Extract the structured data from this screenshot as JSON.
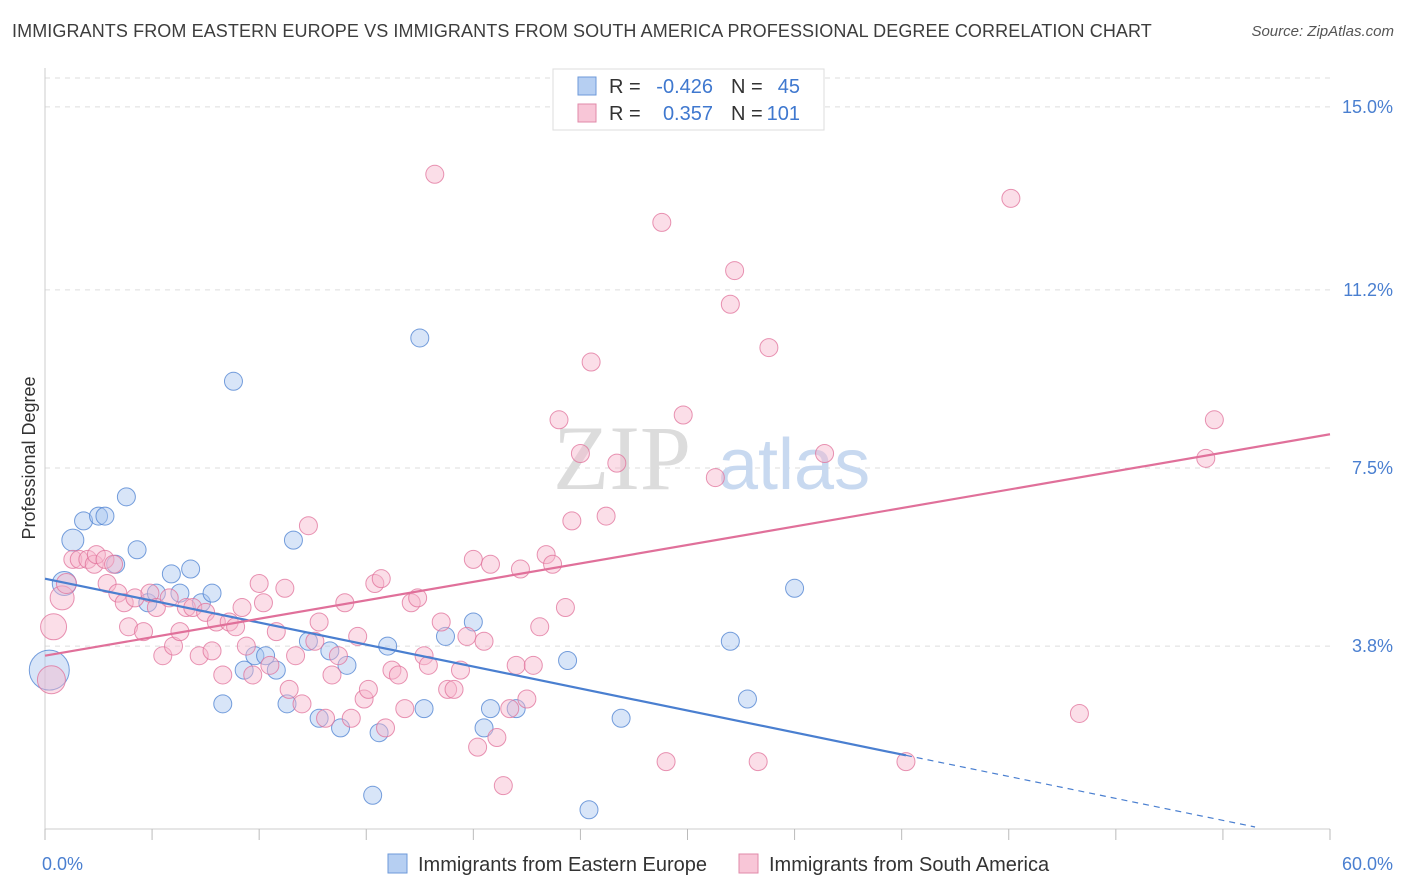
{
  "title": "IMMIGRANTS FROM EASTERN EUROPE VS IMMIGRANTS FROM SOUTH AMERICA PROFESSIONAL DEGREE CORRELATION CHART",
  "source": "Source: ZipAtlas.com",
  "watermark": {
    "zip": "ZIP",
    "atlas": "atlas"
  },
  "chart_data": {
    "type": "scatter",
    "title": "IMMIGRANTS FROM EASTERN EUROPE VS IMMIGRANTS FROM SOUTH AMERICA PROFESSIONAL DEGREE CORRELATION CHART",
    "xlabel": "",
    "ylabel": "Professional Degree",
    "xlim": [
      0,
      60
    ],
    "ylim": [
      0,
      15.6
    ],
    "x_tick_labels": [
      "0.0%",
      "60.0%"
    ],
    "y_ticks": [
      3.8,
      7.5,
      11.2,
      15.0
    ],
    "y_tick_labels": [
      "3.8%",
      "7.5%",
      "11.2%",
      "15.0%"
    ],
    "legend": {
      "r_label": "R =",
      "n_label": "N =",
      "entries": [
        {
          "r": "-0.426",
          "n": "45"
        },
        {
          "r": "0.357",
          "n": "101"
        }
      ]
    },
    "series": [
      {
        "name": "Immigrants from Eastern Europe",
        "color": "#4a7fd0",
        "fill": "#a9c6f0",
        "r": -0.426,
        "n": 45,
        "trend": {
          "x0": 0,
          "y0": 5.2,
          "x1": 40.2,
          "y1": 1.53,
          "dash_to_x": 56.5
        },
        "points": [
          {
            "x": 0.2,
            "y": 3.3,
            "s": 20
          },
          {
            "x": 0.9,
            "y": 5.1,
            "s": 12
          },
          {
            "x": 1.3,
            "y": 6.0,
            "s": 11
          },
          {
            "x": 1.8,
            "y": 6.4,
            "s": 9
          },
          {
            "x": 2.5,
            "y": 6.5,
            "s": 9
          },
          {
            "x": 2.8,
            "y": 6.5,
            "s": 9
          },
          {
            "x": 3.3,
            "y": 5.5,
            "s": 9
          },
          {
            "x": 3.8,
            "y": 6.9,
            "s": 9
          },
          {
            "x": 4.3,
            "y": 5.8,
            "s": 9
          },
          {
            "x": 4.8,
            "y": 4.7,
            "s": 9
          },
          {
            "x": 5.2,
            "y": 4.9,
            "s": 9
          },
          {
            "x": 5.9,
            "y": 5.3,
            "s": 9
          },
          {
            "x": 6.3,
            "y": 4.9,
            "s": 9
          },
          {
            "x": 6.8,
            "y": 5.4,
            "s": 9
          },
          {
            "x": 7.3,
            "y": 4.7,
            "s": 9
          },
          {
            "x": 7.8,
            "y": 4.9,
            "s": 9
          },
          {
            "x": 8.3,
            "y": 2.6,
            "s": 9
          },
          {
            "x": 8.8,
            "y": 9.3,
            "s": 9
          },
          {
            "x": 9.3,
            "y": 3.3,
            "s": 9
          },
          {
            "x": 9.8,
            "y": 3.6,
            "s": 9
          },
          {
            "x": 10.3,
            "y": 3.6,
            "s": 9
          },
          {
            "x": 10.8,
            "y": 3.3,
            "s": 9
          },
          {
            "x": 11.3,
            "y": 2.6,
            "s": 9
          },
          {
            "x": 11.6,
            "y": 6.0,
            "s": 9
          },
          {
            "x": 12.3,
            "y": 3.9,
            "s": 9
          },
          {
            "x": 12.8,
            "y": 2.3,
            "s": 9
          },
          {
            "x": 13.3,
            "y": 3.7,
            "s": 9
          },
          {
            "x": 13.8,
            "y": 2.1,
            "s": 9
          },
          {
            "x": 14.1,
            "y": 3.4,
            "s": 9
          },
          {
            "x": 15.3,
            "y": 0.7,
            "s": 9
          },
          {
            "x": 15.6,
            "y": 2.0,
            "s": 9
          },
          {
            "x": 16.0,
            "y": 3.8,
            "s": 9
          },
          {
            "x": 17.5,
            "y": 10.2,
            "s": 9
          },
          {
            "x": 17.7,
            "y": 2.5,
            "s": 9
          },
          {
            "x": 18.7,
            "y": 4.0,
            "s": 9
          },
          {
            "x": 20.0,
            "y": 4.3,
            "s": 9
          },
          {
            "x": 20.5,
            "y": 2.1,
            "s": 9
          },
          {
            "x": 20.8,
            "y": 2.5,
            "s": 9
          },
          {
            "x": 22.0,
            "y": 2.5,
            "s": 9
          },
          {
            "x": 24.4,
            "y": 3.5,
            "s": 9
          },
          {
            "x": 25.4,
            "y": 0.4,
            "s": 9
          },
          {
            "x": 26.9,
            "y": 2.3,
            "s": 9
          },
          {
            "x": 32.0,
            "y": 3.9,
            "s": 9
          },
          {
            "x": 32.8,
            "y": 2.7,
            "s": 9
          },
          {
            "x": 35.0,
            "y": 5.0,
            "s": 9
          }
        ]
      },
      {
        "name": "Immigrants from South America",
        "color": "#e0709a",
        "fill": "#f6b6cc",
        "r": 0.357,
        "n": 101,
        "trend": {
          "x0": 0,
          "y0": 3.6,
          "x1": 60,
          "y1": 8.2
        },
        "points": [
          {
            "x": 0.3,
            "y": 3.1,
            "s": 14
          },
          {
            "x": 0.4,
            "y": 4.2,
            "s": 13
          },
          {
            "x": 0.8,
            "y": 4.8,
            "s": 12
          },
          {
            "x": 1.0,
            "y": 5.1,
            "s": 10
          },
          {
            "x": 1.3,
            "y": 5.6,
            "s": 9
          },
          {
            "x": 1.6,
            "y": 5.6,
            "s": 9
          },
          {
            "x": 2.0,
            "y": 5.6,
            "s": 9
          },
          {
            "x": 2.3,
            "y": 5.5,
            "s": 9
          },
          {
            "x": 2.4,
            "y": 5.7,
            "s": 9
          },
          {
            "x": 2.8,
            "y": 5.6,
            "s": 9
          },
          {
            "x": 2.9,
            "y": 5.1,
            "s": 9
          },
          {
            "x": 3.2,
            "y": 5.5,
            "s": 9
          },
          {
            "x": 3.4,
            "y": 4.9,
            "s": 9
          },
          {
            "x": 3.7,
            "y": 4.7,
            "s": 9
          },
          {
            "x": 3.9,
            "y": 4.2,
            "s": 9
          },
          {
            "x": 4.2,
            "y": 4.8,
            "s": 9
          },
          {
            "x": 4.6,
            "y": 4.1,
            "s": 9
          },
          {
            "x": 4.9,
            "y": 4.9,
            "s": 9
          },
          {
            "x": 5.2,
            "y": 4.6,
            "s": 9
          },
          {
            "x": 5.5,
            "y": 3.6,
            "s": 9
          },
          {
            "x": 5.8,
            "y": 4.8,
            "s": 9
          },
          {
            "x": 6.0,
            "y": 3.8,
            "s": 9
          },
          {
            "x": 6.3,
            "y": 4.1,
            "s": 9
          },
          {
            "x": 6.6,
            "y": 4.6,
            "s": 9
          },
          {
            "x": 6.9,
            "y": 4.6,
            "s": 9
          },
          {
            "x": 7.2,
            "y": 3.6,
            "s": 9
          },
          {
            "x": 7.5,
            "y": 4.5,
            "s": 9
          },
          {
            "x": 7.8,
            "y": 3.7,
            "s": 9
          },
          {
            "x": 8.0,
            "y": 4.3,
            "s": 9
          },
          {
            "x": 8.3,
            "y": 3.2,
            "s": 9
          },
          {
            "x": 8.6,
            "y": 4.3,
            "s": 9
          },
          {
            "x": 8.9,
            "y": 4.2,
            "s": 9
          },
          {
            "x": 9.2,
            "y": 4.6,
            "s": 9
          },
          {
            "x": 9.4,
            "y": 3.8,
            "s": 9
          },
          {
            "x": 9.7,
            "y": 3.2,
            "s": 9
          },
          {
            "x": 10.0,
            "y": 5.1,
            "s": 9
          },
          {
            "x": 10.2,
            "y": 4.7,
            "s": 9
          },
          {
            "x": 10.5,
            "y": 3.4,
            "s": 9
          },
          {
            "x": 10.8,
            "y": 4.1,
            "s": 9
          },
          {
            "x": 11.2,
            "y": 5.0,
            "s": 9
          },
          {
            "x": 11.4,
            "y": 2.9,
            "s": 9
          },
          {
            "x": 11.7,
            "y": 3.6,
            "s": 9
          },
          {
            "x": 12.0,
            "y": 2.6,
            "s": 9
          },
          {
            "x": 12.3,
            "y": 6.3,
            "s": 9
          },
          {
            "x": 12.6,
            "y": 3.9,
            "s": 9
          },
          {
            "x": 12.8,
            "y": 4.3,
            "s": 9
          },
          {
            "x": 13.1,
            "y": 2.3,
            "s": 9
          },
          {
            "x": 13.4,
            "y": 3.2,
            "s": 9
          },
          {
            "x": 13.7,
            "y": 3.6,
            "s": 9
          },
          {
            "x": 14.0,
            "y": 4.7,
            "s": 9
          },
          {
            "x": 14.3,
            "y": 2.3,
            "s": 9
          },
          {
            "x": 14.6,
            "y": 4.0,
            "s": 9
          },
          {
            "x": 14.9,
            "y": 2.7,
            "s": 9
          },
          {
            "x": 15.1,
            "y": 2.9,
            "s": 9
          },
          {
            "x": 15.4,
            "y": 5.1,
            "s": 9
          },
          {
            "x": 15.7,
            "y": 5.2,
            "s": 9
          },
          {
            "x": 15.9,
            "y": 2.1,
            "s": 9
          },
          {
            "x": 16.2,
            "y": 3.3,
            "s": 9
          },
          {
            "x": 16.5,
            "y": 3.2,
            "s": 9
          },
          {
            "x": 16.8,
            "y": 2.5,
            "s": 9
          },
          {
            "x": 17.1,
            "y": 4.7,
            "s": 9
          },
          {
            "x": 17.4,
            "y": 4.8,
            "s": 9
          },
          {
            "x": 17.7,
            "y": 3.6,
            "s": 9
          },
          {
            "x": 17.9,
            "y": 3.4,
            "s": 9
          },
          {
            "x": 18.2,
            "y": 13.6,
            "s": 9
          },
          {
            "x": 18.5,
            "y": 4.3,
            "s": 9
          },
          {
            "x": 18.8,
            "y": 2.9,
            "s": 9
          },
          {
            "x": 19.1,
            "y": 2.9,
            "s": 9
          },
          {
            "x": 19.4,
            "y": 3.3,
            "s": 9
          },
          {
            "x": 19.7,
            "y": 4.0,
            "s": 9
          },
          {
            "x": 20.0,
            "y": 5.6,
            "s": 9
          },
          {
            "x": 20.2,
            "y": 1.7,
            "s": 9
          },
          {
            "x": 20.5,
            "y": 3.9,
            "s": 9
          },
          {
            "x": 20.8,
            "y": 5.5,
            "s": 9
          },
          {
            "x": 21.1,
            "y": 1.9,
            "s": 9
          },
          {
            "x": 21.4,
            "y": 0.9,
            "s": 9
          },
          {
            "x": 21.7,
            "y": 2.5,
            "s": 9
          },
          {
            "x": 22.0,
            "y": 3.4,
            "s": 9
          },
          {
            "x": 22.2,
            "y": 5.4,
            "s": 9
          },
          {
            "x": 22.5,
            "y": 2.7,
            "s": 9
          },
          {
            "x": 22.8,
            "y": 3.4,
            "s": 9
          },
          {
            "x": 23.1,
            "y": 4.2,
            "s": 9
          },
          {
            "x": 23.4,
            "y": 5.7,
            "s": 9
          },
          {
            "x": 23.7,
            "y": 5.5,
            "s": 9
          },
          {
            "x": 24.0,
            "y": 8.5,
            "s": 9
          },
          {
            "x": 24.3,
            "y": 4.6,
            "s": 9
          },
          {
            "x": 24.6,
            "y": 6.4,
            "s": 9
          },
          {
            "x": 25.0,
            "y": 7.8,
            "s": 9
          },
          {
            "x": 25.5,
            "y": 9.7,
            "s": 9
          },
          {
            "x": 26.2,
            "y": 6.5,
            "s": 9
          },
          {
            "x": 26.7,
            "y": 7.6,
            "s": 9
          },
          {
            "x": 28.8,
            "y": 12.6,
            "s": 9
          },
          {
            "x": 29.0,
            "y": 1.4,
            "s": 9
          },
          {
            "x": 29.8,
            "y": 8.6,
            "s": 9
          },
          {
            "x": 31.3,
            "y": 7.3,
            "s": 9
          },
          {
            "x": 32.0,
            "y": 10.9,
            "s": 9
          },
          {
            "x": 32.2,
            "y": 11.6,
            "s": 9
          },
          {
            "x": 33.3,
            "y": 1.4,
            "s": 9
          },
          {
            "x": 33.8,
            "y": 10.0,
            "s": 9
          },
          {
            "x": 36.4,
            "y": 7.8,
            "s": 9
          },
          {
            "x": 40.2,
            "y": 1.4,
            "s": 9
          }
        ]
      }
    ]
  },
  "extra_points_south_america": [
    {
      "x": 45.1,
      "y": 13.1,
      "s": 9
    },
    {
      "x": 48.3,
      "y": 2.4,
      "s": 9
    },
    {
      "x": 54.2,
      "y": 7.7,
      "s": 9
    },
    {
      "x": 54.6,
      "y": 8.5,
      "s": 9
    }
  ]
}
